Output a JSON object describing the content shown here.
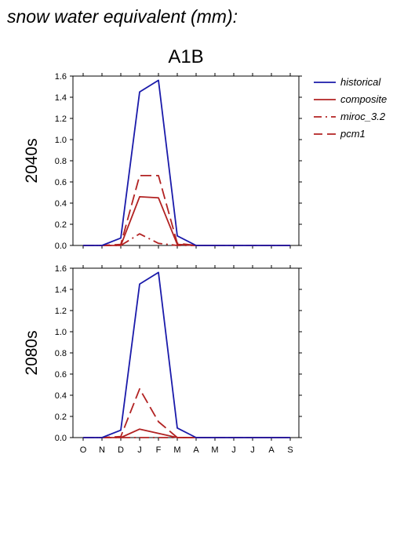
{
  "figure_title": "snow water equivalent (mm):",
  "scenario": "A1B",
  "legend": [
    {
      "name": "historical",
      "color": "#1a1aaa",
      "dash": "solid"
    },
    {
      "name": "composite",
      "color": "#b22222",
      "dash": "solid"
    },
    {
      "name": "miroc_3.2",
      "color": "#b22222",
      "dash": "dashdot"
    },
    {
      "name": "pcm1",
      "color": "#b22222",
      "dash": "longdash"
    }
  ],
  "chart_data": [
    {
      "type": "line",
      "panel_label": "2040s",
      "categories": [
        "O",
        "N",
        "D",
        "J",
        "F",
        "M",
        "A",
        "M",
        "J",
        "J",
        "A",
        "S"
      ],
      "ylim": [
        0,
        1.6
      ],
      "yticks": [
        "0.0",
        "0.2",
        "0.4",
        "0.6",
        "0.8",
        "1.0",
        "1.2",
        "1.4",
        "1.6"
      ],
      "series": [
        {
          "name": "historical",
          "values": [
            0,
            0,
            0.07,
            1.45,
            1.56,
            0.09,
            0,
            0,
            0,
            0,
            0,
            0
          ]
        },
        {
          "name": "composite",
          "values": [
            0,
            0,
            0,
            0.46,
            0.45,
            0.01,
            0,
            0,
            0,
            0,
            0,
            0
          ]
        },
        {
          "name": "miroc_3.2",
          "values": [
            0,
            0,
            0,
            0.11,
            0.02,
            0,
            0,
            0,
            0,
            0,
            0,
            0
          ]
        },
        {
          "name": "pcm1",
          "values": [
            0,
            0,
            0.01,
            0.66,
            0.66,
            0.02,
            0,
            0,
            0,
            0,
            0,
            0
          ]
        }
      ]
    },
    {
      "type": "line",
      "panel_label": "2080s",
      "categories": [
        "O",
        "N",
        "D",
        "J",
        "F",
        "M",
        "A",
        "M",
        "J",
        "J",
        "A",
        "S"
      ],
      "ylim": [
        0,
        1.6
      ],
      "yticks": [
        "0.0",
        "0.2",
        "0.4",
        "0.6",
        "0.8",
        "1.0",
        "1.2",
        "1.4",
        "1.6"
      ],
      "series": [
        {
          "name": "historical",
          "values": [
            0,
            0,
            0.07,
            1.45,
            1.56,
            0.09,
            0,
            0,
            0,
            0,
            0,
            0
          ]
        },
        {
          "name": "composite",
          "values": [
            0,
            0,
            0,
            0.08,
            0.04,
            0,
            0,
            0,
            0,
            0,
            0,
            0
          ]
        },
        {
          "name": "miroc_3.2",
          "values": [
            0,
            0,
            0,
            0,
            0,
            0,
            0,
            0,
            0,
            0,
            0,
            0
          ]
        },
        {
          "name": "pcm1",
          "values": [
            0,
            0,
            0.01,
            0.46,
            0.15,
            0,
            0,
            0,
            0,
            0,
            0,
            0
          ]
        }
      ]
    }
  ]
}
